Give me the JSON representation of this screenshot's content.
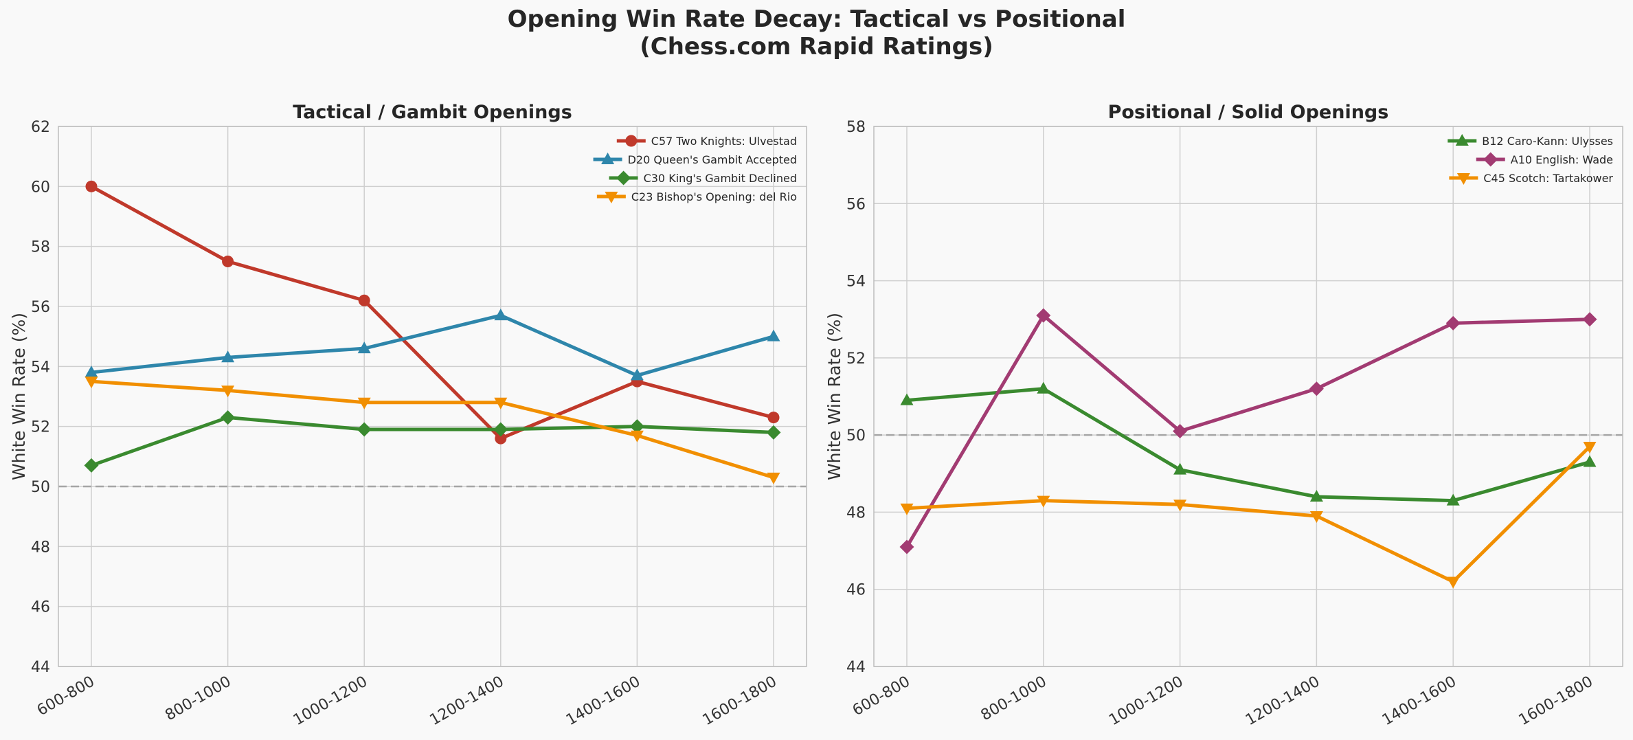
{
  "figure": {
    "title_line1": "Opening Win Rate Decay: Tactical vs Positional",
    "title_line2": "(Chess.com Rapid Ratings)"
  },
  "chart_data": [
    {
      "type": "line",
      "title": "Tactical / Gambit Openings",
      "ylabel": "White Win Rate (%)",
      "xlabel": "",
      "categories": [
        "600-800",
        "800-1000",
        "1000-1200",
        "1200-1400",
        "1400-1600",
        "1600-1800"
      ],
      "ylim": [
        44,
        62
      ],
      "yticks": [
        44,
        46,
        48,
        50,
        52,
        54,
        56,
        58,
        60,
        62
      ],
      "reference_line": 50,
      "grid": true,
      "legend": "top-right",
      "series": [
        {
          "name": "C57 Two Knights: Ulvestad",
          "color": "#c0392b",
          "marker": "circle",
          "values": [
            60.0,
            57.5,
            56.2,
            51.6,
            53.5,
            52.3
          ]
        },
        {
          "name": "D20 Queen's Gambit Accepted",
          "color": "#2e86ab",
          "marker": "triangle-up",
          "values": [
            53.8,
            54.3,
            54.6,
            55.7,
            53.7,
            55.0
          ]
        },
        {
          "name": "C30 King's Gambit Declined",
          "color": "#3a8a2f",
          "marker": "diamond",
          "values": [
            50.7,
            52.3,
            51.9,
            51.9,
            52.0,
            51.8
          ]
        },
        {
          "name": "C23 Bishop's Opening: del Rio",
          "color": "#f18f01",
          "marker": "triangle-down",
          "values": [
            53.5,
            53.2,
            52.8,
            52.8,
            51.7,
            50.3
          ]
        }
      ]
    },
    {
      "type": "line",
      "title": "Positional / Solid Openings",
      "ylabel": "White Win Rate (%)",
      "xlabel": "",
      "categories": [
        "600-800",
        "800-1000",
        "1000-1200",
        "1200-1400",
        "1400-1600",
        "1600-1800"
      ],
      "ylim": [
        44,
        58
      ],
      "yticks": [
        44,
        46,
        48,
        50,
        52,
        54,
        56,
        58
      ],
      "reference_line": 50,
      "grid": true,
      "legend": "top-right",
      "series": [
        {
          "name": "B12 Caro-Kann: Ulysses",
          "color": "#3a8a2f",
          "marker": "triangle-up",
          "values": [
            50.9,
            51.2,
            49.1,
            48.4,
            48.3,
            49.3
          ]
        },
        {
          "name": "A10 English: Wade",
          "color": "#a23b72",
          "marker": "diamond",
          "values": [
            47.1,
            53.1,
            50.1,
            51.2,
            52.9,
            53.0
          ]
        },
        {
          "name": "C45 Scotch: Tartakower",
          "color": "#f18f01",
          "marker": "triangle-down",
          "values": [
            48.1,
            48.3,
            48.2,
            47.9,
            46.2,
            49.7
          ]
        }
      ]
    }
  ]
}
